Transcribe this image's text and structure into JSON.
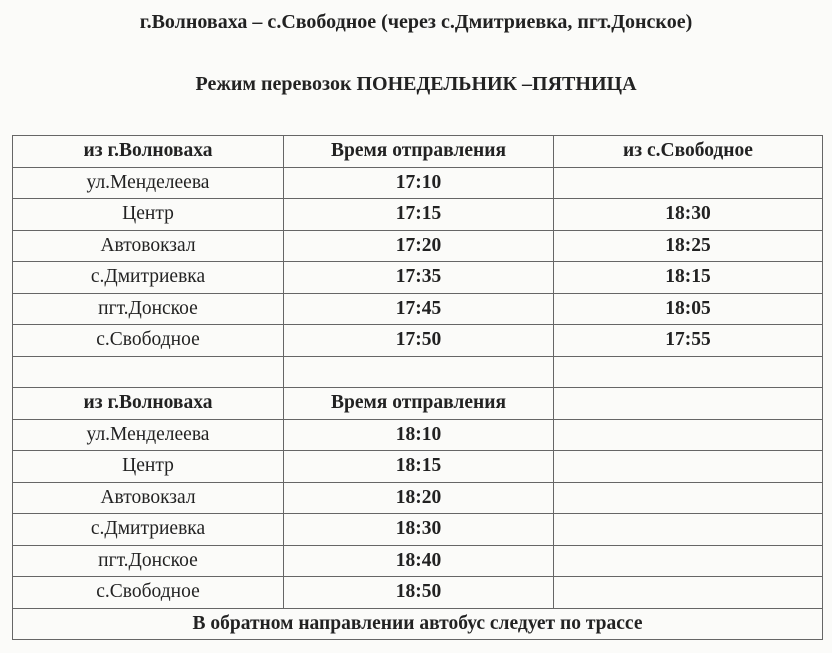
{
  "title": "г.Волноваха – с.Свободное (через с.Дмитриевка, пгт.Донское)",
  "schedule_mode": "Режим перевозок ПОНЕДЕЛЬНИК –ПЯТНИЦА",
  "table1": {
    "headers": [
      "из г.Волноваха",
      "Время отправления",
      "из с.Свободное"
    ],
    "rows": [
      {
        "stop": "ул.Менделеева",
        "departure": "17:10",
        "return": ""
      },
      {
        "stop": "Центр",
        "departure": "17:15",
        "return": "18:30"
      },
      {
        "stop": "Автовокзал",
        "departure": "17:20",
        "return": "18:25"
      },
      {
        "stop": "с.Дмитриевка",
        "departure": "17:35",
        "return": "18:15"
      },
      {
        "stop": "пгт.Донское",
        "departure": "17:45",
        "return": "18:05"
      },
      {
        "stop": "с.Свободное",
        "departure": "17:50",
        "return": "17:55"
      }
    ]
  },
  "table2": {
    "headers": [
      "из г.Волноваха",
      "Время отправления",
      ""
    ],
    "rows": [
      {
        "stop": "ул.Менделеева",
        "departure": "18:10"
      },
      {
        "stop": "Центр",
        "departure": "18:15"
      },
      {
        "stop": "Автовокзал",
        "departure": "18:20"
      },
      {
        "stop": "с.Дмитриевка",
        "departure": "18:30"
      },
      {
        "stop": "пгт.Донское",
        "departure": "18:40"
      },
      {
        "stop": "с.Свободное",
        "departure": "18:50"
      }
    ]
  },
  "footer_note": "В обратном направлении автобус следует по трассе"
}
